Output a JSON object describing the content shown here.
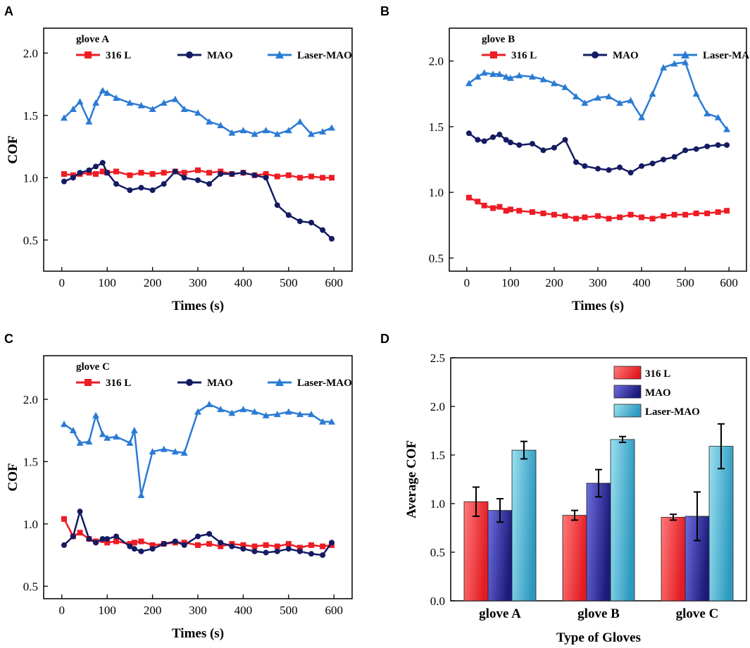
{
  "colors": {
    "s316": "#ee1c24",
    "mao": "#141b62",
    "laser": "#2a7bd4",
    "bar316": "#f04a4a",
    "barMao": "#3d3bb0",
    "barLaser": "#4fb6d4"
  },
  "chart_data": [
    {
      "panel": "A",
      "type": "line",
      "title": "glove A",
      "xlabel": "Times (s)",
      "ylabel": "COF",
      "xlim": [
        -40,
        640
      ],
      "ylim": [
        0.25,
        2.2
      ],
      "xticks": [
        "0",
        "100",
        "200",
        "300",
        "400",
        "500",
        "600"
      ],
      "yticks": [
        "0.5",
        "1.0",
        "1.5",
        "2.0"
      ],
      "x": [
        5,
        25,
        40,
        60,
        75,
        90,
        100,
        120,
        150,
        175,
        200,
        225,
        250,
        270,
        300,
        325,
        350,
        375,
        400,
        425,
        450,
        475,
        500,
        525,
        550,
        575,
        595
      ],
      "series": [
        {
          "name": "316 L",
          "values": [
            1.03,
            1.02,
            1.03,
            1.04,
            1.03,
            1.05,
            1.04,
            1.05,
            1.02,
            1.04,
            1.03,
            1.04,
            1.05,
            1.04,
            1.06,
            1.04,
            1.05,
            1.03,
            1.04,
            1.02,
            1.03,
            1.01,
            1.02,
            1.0,
            1.01,
            1.0,
            1.0
          ]
        },
        {
          "name": "MAO",
          "values": [
            0.97,
            1.0,
            1.04,
            1.06,
            1.09,
            1.12,
            1.04,
            0.95,
            0.9,
            0.92,
            0.9,
            0.95,
            1.05,
            1.0,
            0.98,
            0.95,
            1.03,
            1.03,
            1.04,
            1.02,
            1.0,
            0.78,
            0.7,
            0.65,
            0.64,
            0.58,
            0.51
          ]
        },
        {
          "name": "Laser-MAO",
          "values": [
            1.48,
            1.55,
            1.61,
            1.45,
            1.6,
            1.7,
            1.68,
            1.64,
            1.6,
            1.58,
            1.55,
            1.6,
            1.63,
            1.55,
            1.52,
            1.45,
            1.42,
            1.36,
            1.38,
            1.35,
            1.38,
            1.35,
            1.38,
            1.45,
            1.35,
            1.37,
            1.4
          ]
        }
      ]
    },
    {
      "panel": "B",
      "type": "line",
      "title": "glove B",
      "xlabel": "Times (s)",
      "ylabel": "COF",
      "xlim": [
        -40,
        640
      ],
      "ylim": [
        0.4,
        2.25
      ],
      "xticks": [
        "0",
        "100",
        "200",
        "300",
        "400",
        "500",
        "600"
      ],
      "yticks": [
        "0.5",
        "1.0",
        "1.5",
        "2.0"
      ],
      "x": [
        5,
        25,
        40,
        60,
        75,
        90,
        100,
        120,
        150,
        175,
        200,
        225,
        250,
        270,
        300,
        325,
        350,
        375,
        400,
        425,
        450,
        475,
        500,
        525,
        550,
        575,
        595
      ],
      "series": [
        {
          "name": "316 L",
          "values": [
            0.96,
            0.93,
            0.9,
            0.88,
            0.89,
            0.86,
            0.87,
            0.86,
            0.85,
            0.84,
            0.83,
            0.82,
            0.8,
            0.81,
            0.82,
            0.8,
            0.81,
            0.83,
            0.81,
            0.8,
            0.82,
            0.83,
            0.83,
            0.84,
            0.84,
            0.85,
            0.86
          ]
        },
        {
          "name": "MAO",
          "values": [
            1.45,
            1.4,
            1.39,
            1.42,
            1.44,
            1.4,
            1.38,
            1.36,
            1.37,
            1.32,
            1.34,
            1.4,
            1.23,
            1.2,
            1.18,
            1.17,
            1.19,
            1.15,
            1.2,
            1.22,
            1.25,
            1.27,
            1.32,
            1.33,
            1.35,
            1.36,
            1.36
          ]
        },
        {
          "name": "Laser-MAO",
          "values": [
            1.83,
            1.88,
            1.91,
            1.9,
            1.9,
            1.88,
            1.87,
            1.89,
            1.88,
            1.86,
            1.83,
            1.8,
            1.73,
            1.68,
            1.72,
            1.73,
            1.68,
            1.7,
            1.57,
            1.75,
            1.95,
            1.98,
            1.99,
            1.75,
            1.6,
            1.57,
            1.48
          ]
        }
      ]
    },
    {
      "panel": "C",
      "type": "line",
      "title": "glove C",
      "xlabel": "Times (s)",
      "ylabel": "COF",
      "xlim": [
        -40,
        640
      ],
      "ylim": [
        0.4,
        2.35
      ],
      "xticks": [
        "0",
        "100",
        "200",
        "300",
        "400",
        "500",
        "600"
      ],
      "yticks": [
        "0.5",
        "1.0",
        "1.5",
        "2.0"
      ],
      "x": [
        5,
        25,
        40,
        60,
        75,
        90,
        100,
        120,
        150,
        160,
        175,
        200,
        225,
        250,
        270,
        300,
        325,
        350,
        375,
        400,
        425,
        450,
        475,
        500,
        525,
        550,
        575,
        595
      ],
      "series": [
        {
          "name": "316 L",
          "values": [
            1.04,
            0.9,
            0.93,
            0.88,
            0.86,
            0.87,
            0.85,
            0.86,
            0.84,
            0.85,
            0.86,
            0.83,
            0.84,
            0.85,
            0.85,
            0.83,
            0.84,
            0.82,
            0.84,
            0.83,
            0.82,
            0.83,
            0.82,
            0.84,
            0.81,
            0.83,
            0.82,
            0.83
          ]
        },
        {
          "name": "MAO",
          "values": [
            0.83,
            0.9,
            1.1,
            0.88,
            0.85,
            0.88,
            0.88,
            0.9,
            0.82,
            0.8,
            0.78,
            0.8,
            0.84,
            0.86,
            0.83,
            0.9,
            0.92,
            0.85,
            0.82,
            0.8,
            0.78,
            0.77,
            0.78,
            0.8,
            0.78,
            0.76,
            0.75,
            0.85
          ]
        },
        {
          "name": "Laser-MAO",
          "values": [
            1.8,
            1.75,
            1.65,
            1.66,
            1.87,
            1.72,
            1.69,
            1.7,
            1.65,
            1.75,
            1.23,
            1.58,
            1.6,
            1.58,
            1.57,
            1.9,
            1.96,
            1.92,
            1.89,
            1.92,
            1.9,
            1.87,
            1.88,
            1.9,
            1.88,
            1.88,
            1.82,
            1.82
          ]
        }
      ]
    },
    {
      "panel": "D",
      "type": "bar",
      "xlabel": "Type of Gloves",
      "ylabel": "Average COF",
      "ylim": [
        0,
        2.5
      ],
      "yticks": [
        "0.0",
        "0.5",
        "1.0",
        "1.5",
        "2.0",
        "2.5"
      ],
      "categories": [
        "glove A",
        "glove B",
        "glove C"
      ],
      "series": [
        {
          "name": "316 L",
          "values": [
            1.02,
            0.88,
            0.86
          ],
          "errors": [
            0.15,
            0.05,
            0.03
          ]
        },
        {
          "name": "MAO",
          "values": [
            0.93,
            1.21,
            0.87
          ],
          "errors": [
            0.12,
            0.14,
            0.25
          ]
        },
        {
          "name": "Laser-MAO",
          "values": [
            1.55,
            1.66,
            1.59
          ],
          "errors": [
            0.09,
            0.03,
            0.23
          ]
        }
      ]
    }
  ]
}
